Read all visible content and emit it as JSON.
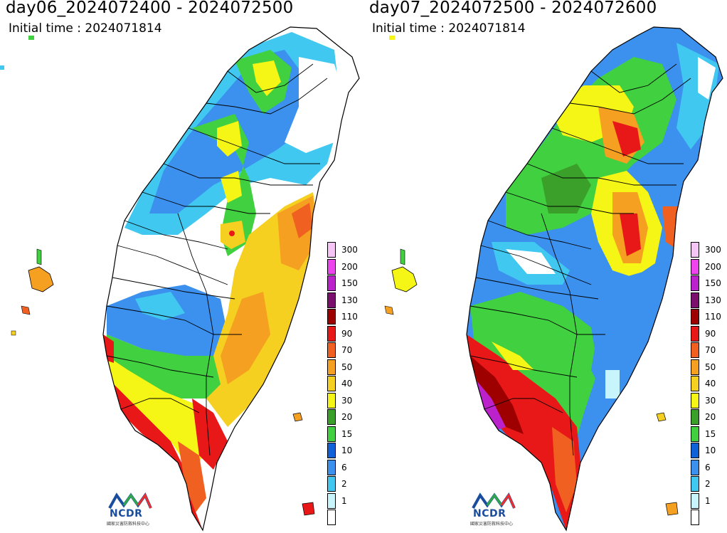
{
  "panels": [
    {
      "title": "day06_2024072400 - 2024072500",
      "subtitle": "Initial time : 2024071814"
    },
    {
      "title": "day07_2024072500 - 2024072600",
      "subtitle": "Initial time : 2024071814"
    }
  ],
  "legend": {
    "levels": [
      {
        "label": "300",
        "color": "#f5c6f5"
      },
      {
        "label": "200",
        "color": "#ee44ee"
      },
      {
        "label": "150",
        "color": "#bb22cc"
      },
      {
        "label": "130",
        "color": "#7a0f6e"
      },
      {
        "label": "110",
        "color": "#9e0000"
      },
      {
        "label": "90",
        "color": "#e81818"
      },
      {
        "label": "70",
        "color": "#f06020"
      },
      {
        "label": "50",
        "color": "#f5a020"
      },
      {
        "label": "40",
        "color": "#f5d020"
      },
      {
        "label": "30",
        "color": "#f5f516"
      },
      {
        "label": "20",
        "color": "#3aa02a"
      },
      {
        "label": "15",
        "color": "#40d040"
      },
      {
        "label": "10",
        "color": "#1060d8"
      },
      {
        "label": "6",
        "color": "#3c90ee"
      },
      {
        "label": "2",
        "color": "#40c8f0"
      },
      {
        "label": "1",
        "color": "#c8f4fc"
      },
      {
        "label": "",
        "color": "#ffffff"
      }
    ]
  },
  "logo": {
    "name": "NCDR",
    "subtitle": "國家災害防救科技中心"
  }
}
